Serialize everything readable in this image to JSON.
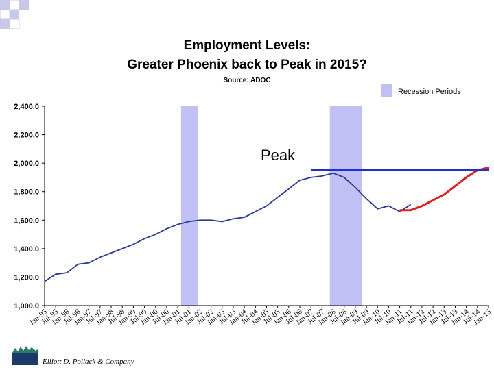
{
  "chart_data": {
    "type": "line",
    "title": "Employment Levels:",
    "subtitle": "Greater Phoenix back to Peak in 2015?",
    "source": "Source: ADOC",
    "categories": [
      "Jan-95",
      "Jul-95",
      "Jan-96",
      "Jul-96",
      "Jan-97",
      "Jul-97",
      "Jan-98",
      "Jul-98",
      "Jan-99",
      "Jul-99",
      "Jan-00",
      "Jul-00",
      "Jan-01",
      "Jul-01",
      "Jan-02",
      "Jul-02",
      "Jan-03",
      "Jul-03",
      "Jan-04",
      "Jul-04",
      "Jan-05",
      "Jul-05",
      "Jan-06",
      "Jul-06",
      "Jan-07",
      "Jul-07",
      "Jan-08",
      "Jul-08",
      "Jan-09",
      "Jul-09",
      "Jan-10",
      "Jul-10",
      "Jan-11",
      "Jul-11",
      "Jan-12",
      "Jul-12",
      "Jan-13",
      "Jul-13",
      "Jan-14",
      "Jul-14",
      "Jan-15"
    ],
    "series": [
      {
        "color": "#2a3a9a",
        "values": [
          1170,
          1220,
          1230,
          1290,
          1300,
          1340,
          1370,
          1400,
          1430,
          1470,
          1500,
          1540,
          1570,
          1590,
          1600,
          1600,
          1590,
          1610,
          1620,
          1660,
          1700,
          1760,
          1820,
          1880,
          1900,
          1910,
          1930,
          1900,
          1830,
          1750,
          1680,
          1700,
          1660,
          1710,
          null,
          null,
          null,
          null,
          null,
          null,
          null
        ]
      },
      {
        "color": "#e02020",
        "values": [
          null,
          null,
          null,
          null,
          null,
          null,
          null,
          null,
          null,
          null,
          null,
          null,
          null,
          null,
          null,
          null,
          null,
          null,
          null,
          null,
          null,
          null,
          null,
          null,
          null,
          null,
          null,
          null,
          null,
          null,
          null,
          null,
          1670,
          1670,
          1700,
          1740,
          1780,
          1840,
          1900,
          1950,
          1970
        ]
      },
      {
        "color": "#2030d0",
        "values": [
          null,
          null,
          null,
          null,
          null,
          null,
          null,
          null,
          null,
          null,
          null,
          null,
          null,
          null,
          null,
          null,
          null,
          null,
          null,
          null,
          null,
          null,
          null,
          null,
          1955,
          1955,
          1955,
          1955,
          1955,
          1955,
          1955,
          1955,
          1955,
          1955,
          1955,
          1955,
          1955,
          1955,
          1955,
          1955,
          1955
        ]
      }
    ],
    "recessions": {
      "label": "Recession Periods",
      "color": "#c0c0f4",
      "spans": [
        [
          12.3,
          13.8
        ],
        [
          25.7,
          28.6
        ]
      ]
    },
    "annotation": "Peak",
    "ylim": [
      1000,
      2400
    ],
    "yticks": [
      {
        "value": 1000,
        "label": "1,000.0"
      },
      {
        "value": 1200,
        "label": "1,200.0"
      },
      {
        "value": 1400,
        "label": "1,400.0"
      },
      {
        "value": 1600,
        "label": "1,600.0"
      },
      {
        "value": 1800,
        "label": "1,800.0"
      },
      {
        "value": 2000,
        "label": "2,000.0"
      },
      {
        "value": 2200,
        "label": "2,200.0"
      },
      {
        "value": 2400,
        "label": "2,400.0"
      }
    ],
    "grid": false
  },
  "footer": "Elliott D. Pollack & Company"
}
